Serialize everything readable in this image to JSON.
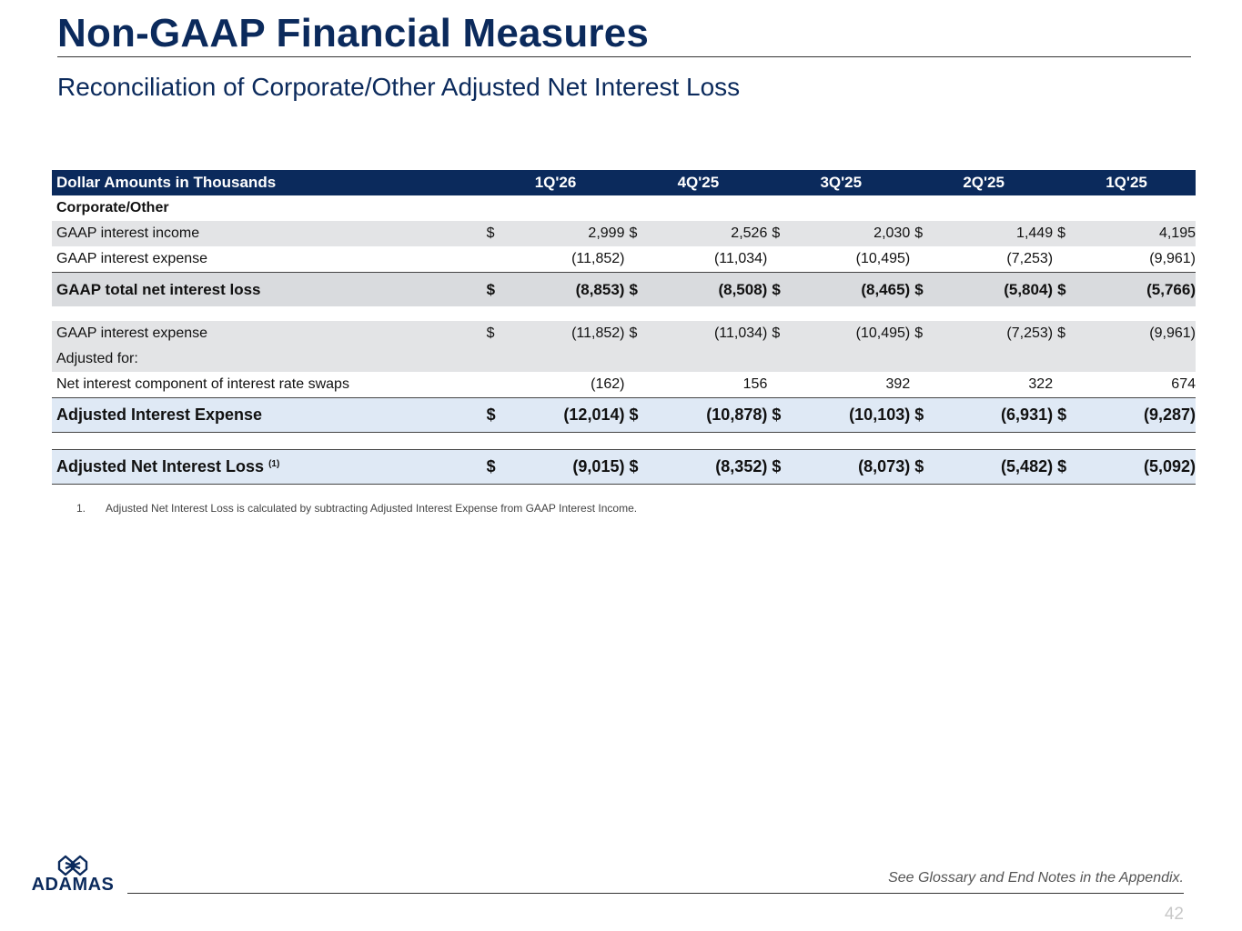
{
  "header": {
    "title": "Non-GAAP Financial Measures",
    "subtitle": "Reconciliation of Corporate/Other Adjusted Net Interest Loss"
  },
  "table": {
    "header_label": "Dollar Amounts in Thousands",
    "columns": [
      "1Q'26",
      "4Q'25",
      "3Q'25",
      "2Q'25",
      "1Q'25"
    ],
    "section_label": "Corporate/Other",
    "rows": [
      {
        "label": "GAAP interest income",
        "dollar": "$",
        "values": [
          "2,999",
          "2,526",
          "2,030",
          "1,449",
          "4,195"
        ]
      },
      {
        "label": "GAAP interest expense",
        "dollar": "",
        "values": [
          "(11,852)",
          "(11,034)",
          "(10,495)",
          "(7,253)",
          "(9,961)"
        ]
      },
      {
        "label": "GAAP total net interest loss",
        "dollar": "$",
        "values": [
          "(8,853)",
          "(8,508)",
          "(8,465)",
          "(5,804)",
          "(5,766)"
        ]
      },
      {
        "label": "GAAP interest expense",
        "dollar": "$",
        "values": [
          "(11,852)",
          "(11,034)",
          "(10,495)",
          "(7,253)",
          "(9,961)"
        ]
      },
      {
        "label": "Adjusted for:",
        "dollar": "",
        "values": [
          "",
          "",
          "",
          "",
          ""
        ]
      },
      {
        "label": "Net interest component of interest rate swaps",
        "dollar": "",
        "values": [
          "(162)",
          "156",
          "392",
          "322",
          "674"
        ]
      },
      {
        "label": "Adjusted Interest Expense",
        "dollar": "$",
        "values": [
          "(12,014)",
          "(10,878)",
          "(10,103)",
          "(6,931)",
          "(9,287)"
        ]
      },
      {
        "label": "Adjusted Net Interest Loss",
        "footnote_ref": "(1)",
        "dollar": "$",
        "values": [
          "(9,015)",
          "(8,352)",
          "(8,073)",
          "(5,482)",
          "(5,092)"
        ]
      }
    ]
  },
  "footnote": {
    "number": "1.",
    "text": "Adjusted Net Interest Loss is calculated by subtracting Adjusted Interest Expense from GAAP Interest Income."
  },
  "footer": {
    "logo_text": "ADAMAS",
    "logo_icon": "adamas-logo-icon",
    "glossary_note": "See Glossary and End Notes in the Appendix.",
    "page_number": "42"
  },
  "colors": {
    "brand_navy": "#0b2a5c",
    "row_shade": "#e3e4e6",
    "total_blue": "#dfe9f5"
  }
}
